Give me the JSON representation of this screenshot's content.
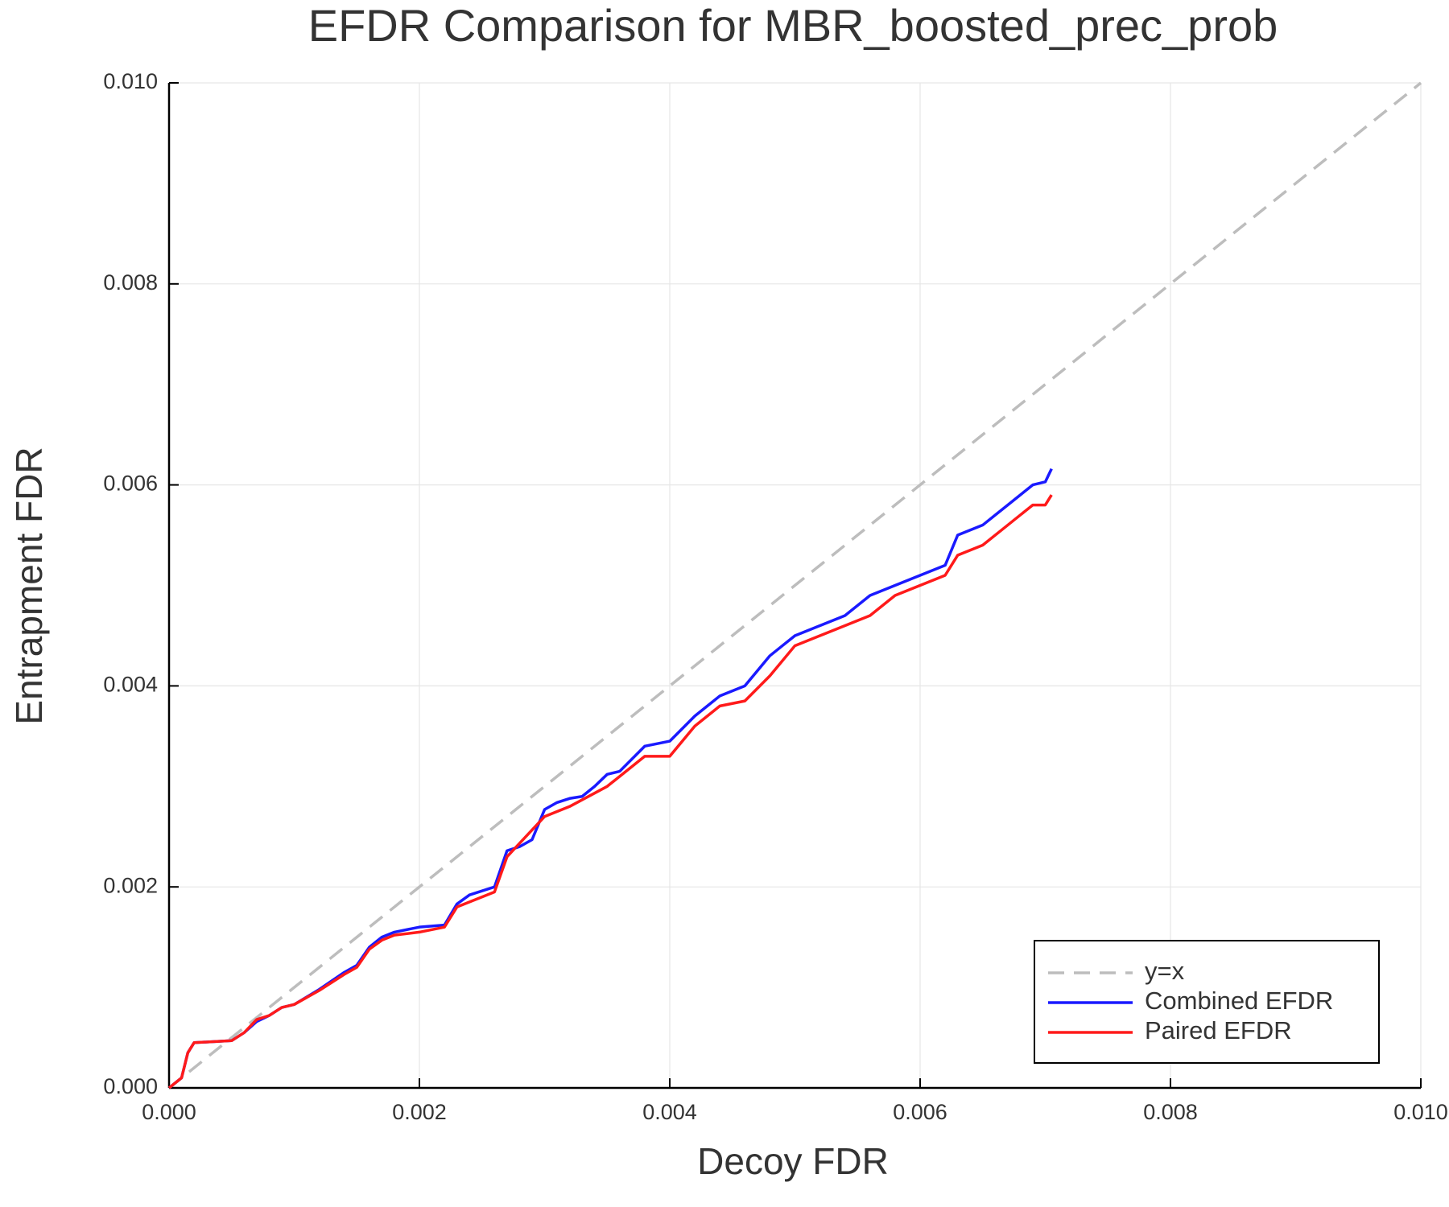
{
  "chart_data": {
    "type": "line",
    "title": "EFDR Comparison for MBR_boosted_prec_prob",
    "x_label": "Decoy FDR",
    "y_label": "Entrapment FDR",
    "xlim": [
      0,
      0.01
    ],
    "ylim": [
      0,
      0.01
    ],
    "xticks": [
      {
        "value": 0,
        "label": "0.000"
      },
      {
        "value": 0.002,
        "label": "0.002"
      },
      {
        "value": 0.004,
        "label": "0.004"
      },
      {
        "value": 0.006,
        "label": "0.006"
      },
      {
        "value": 0.008,
        "label": "0.008"
      },
      {
        "value": 0.01,
        "label": "0.010"
      }
    ],
    "yticks": [
      {
        "value": 0,
        "label": "0.000"
      },
      {
        "value": 0.002,
        "label": "0.002"
      },
      {
        "value": 0.004,
        "label": "0.004"
      },
      {
        "value": 0.006,
        "label": "0.006"
      },
      {
        "value": 0.008,
        "label": "0.008"
      },
      {
        "value": 0.01,
        "label": "0.010"
      }
    ],
    "grid": true,
    "legend": "lower right",
    "series": [
      {
        "name": "y=x",
        "color": "#bdbdbd",
        "dash": true,
        "x": [
          0,
          0.01
        ],
        "values": [
          0,
          0.01
        ]
      },
      {
        "name": "Combined EFDR",
        "color": "#1a1aff",
        "dash": false,
        "x": [
          0,
          0.0001,
          0.00015,
          0.0002,
          0.0005,
          0.0006,
          0.0007,
          0.0008,
          0.0009,
          0.001,
          0.0012,
          0.0014,
          0.0015,
          0.0016,
          0.0017,
          0.0018,
          0.002,
          0.0022,
          0.0023,
          0.0024,
          0.0025,
          0.0026,
          0.0027,
          0.0028,
          0.0029,
          0.003,
          0.0031,
          0.0032,
          0.0033,
          0.0034,
          0.0035,
          0.0036,
          0.0038,
          0.004,
          0.0042,
          0.0044,
          0.0046,
          0.0048,
          0.0049,
          0.005,
          0.0052,
          0.0054,
          0.0056,
          0.0058,
          0.006,
          0.0062,
          0.0063,
          0.0065,
          0.0067,
          0.0068,
          0.0069,
          0.007,
          0.00705
        ],
        "values": [
          0,
          0.0001,
          0.00035,
          0.00045,
          0.00047,
          0.00055,
          0.00066,
          0.00072,
          0.0008,
          0.00083,
          0.00098,
          0.00115,
          0.00122,
          0.0014,
          0.0015,
          0.00155,
          0.0016,
          0.00162,
          0.00183,
          0.00192,
          0.00196,
          0.002,
          0.00236,
          0.0024,
          0.00247,
          0.00277,
          0.00284,
          0.00288,
          0.0029,
          0.003,
          0.00312,
          0.00315,
          0.0034,
          0.00345,
          0.0037,
          0.0039,
          0.004,
          0.0043,
          0.0044,
          0.0045,
          0.0046,
          0.0047,
          0.0049,
          0.005,
          0.0051,
          0.0052,
          0.0055,
          0.0056,
          0.0058,
          0.0059,
          0.006,
          0.00603,
          0.00616
        ]
      },
      {
        "name": "Paired EFDR",
        "color": "#ff1a1a",
        "dash": false,
        "x": [
          0,
          0.0001,
          0.00015,
          0.0002,
          0.0005,
          0.0006,
          0.0007,
          0.0008,
          0.0009,
          0.001,
          0.0012,
          0.0014,
          0.0015,
          0.0016,
          0.0017,
          0.0018,
          0.002,
          0.0022,
          0.0023,
          0.0026,
          0.0027,
          0.003,
          0.0032,
          0.0035,
          0.0038,
          0.004,
          0.0042,
          0.0044,
          0.0046,
          0.0048,
          0.005,
          0.0052,
          0.0054,
          0.0056,
          0.0058,
          0.006,
          0.0062,
          0.0063,
          0.0065,
          0.0067,
          0.0068,
          0.0069,
          0.007,
          0.00705
        ],
        "values": [
          0,
          0.0001,
          0.00035,
          0.00045,
          0.00047,
          0.00055,
          0.00068,
          0.00072,
          0.0008,
          0.00083,
          0.00097,
          0.00113,
          0.0012,
          0.00138,
          0.00147,
          0.00152,
          0.00155,
          0.0016,
          0.0018,
          0.00195,
          0.0023,
          0.0027,
          0.0028,
          0.003,
          0.0033,
          0.0033,
          0.0036,
          0.0038,
          0.00385,
          0.0041,
          0.0044,
          0.0045,
          0.0046,
          0.0047,
          0.0049,
          0.005,
          0.0051,
          0.0053,
          0.0054,
          0.0056,
          0.0057,
          0.0058,
          0.0058,
          0.0059
        ]
      }
    ]
  }
}
